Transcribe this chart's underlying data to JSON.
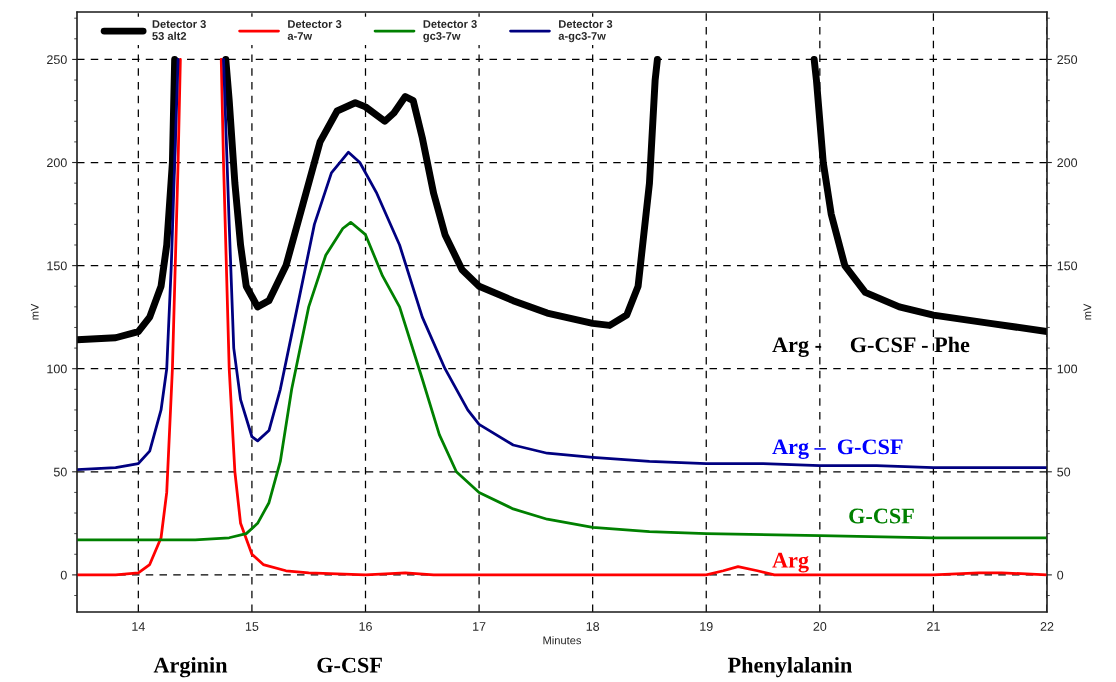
{
  "chart_data": {
    "type": "line",
    "xlabel": "Minutes",
    "ylabel": "mV",
    "y2label": "mV",
    "xlim": [
      13.46,
      22
    ],
    "xticks": [
      14,
      15,
      16,
      17,
      18,
      19,
      20,
      21,
      22
    ],
    "ylim": [
      -18,
      273
    ],
    "yticks": [
      0,
      50,
      100,
      150,
      200,
      250
    ],
    "y2lim": [
      -18,
      273
    ],
    "y2ticks": [
      0,
      50,
      100,
      150,
      200,
      250
    ],
    "grid": true,
    "legend": "top left",
    "line_style": "solid",
    "marker": "none",
    "series": [
      {
        "name": "Detector 3\n53 alt2",
        "color": "#000000",
        "x": [
          13.46,
          13.8,
          14.0,
          14.1,
          14.2,
          14.25,
          14.3,
          14.32,
          14.5,
          14.77,
          14.8,
          14.85,
          14.9,
          14.95,
          15.05,
          15.15,
          15.3,
          15.45,
          15.6,
          15.75,
          15.91,
          16.0,
          16.17,
          16.25,
          16.35,
          16.42,
          16.5,
          16.6,
          16.7,
          16.85,
          17.0,
          17.3,
          17.6,
          18.0,
          18.15,
          18.3,
          18.4,
          18.5,
          18.55,
          18.57,
          19.2,
          19.95,
          19.97,
          20.03,
          20.1,
          20.22,
          20.4,
          20.7,
          21.0,
          21.5,
          22.0
        ],
        "values": [
          114,
          115,
          118,
          125,
          140,
          160,
          200,
          250,
          null,
          250,
          230,
          190,
          160,
          140,
          130,
          133,
          150,
          180,
          210,
          225,
          229,
          227,
          220,
          224,
          232,
          230,
          212,
          185,
          165,
          148,
          140,
          133,
          127,
          122,
          121,
          126,
          140,
          190,
          240,
          250,
          null,
          250,
          240,
          200,
          175,
          150,
          137,
          130,
          126,
          122,
          118
        ]
      },
      {
        "name": "Detector 3\na-7w",
        "color": "#ff0000",
        "x": [
          13.46,
          13.8,
          14.0,
          14.1,
          14.2,
          14.25,
          14.3,
          14.35,
          14.37,
          14.55,
          14.73,
          14.75,
          14.8,
          14.85,
          14.9,
          15.0,
          15.1,
          15.3,
          15.5,
          16.0,
          16.35,
          16.6,
          18.5,
          19.0,
          19.15,
          19.28,
          19.45,
          19.6,
          20.5,
          21.0,
          21.4,
          21.6,
          22.0
        ],
        "values": [
          0,
          0,
          1,
          5,
          18,
          40,
          100,
          200,
          250,
          null,
          250,
          200,
          100,
          50,
          25,
          10,
          5,
          2,
          1,
          0,
          1,
          0,
          0,
          0,
          2,
          4,
          2,
          0,
          0,
          0,
          1,
          1,
          0
        ]
      },
      {
        "name": "Detector 3\ngc3-7w",
        "color": "#008000",
        "x": [
          13.46,
          14.5,
          14.8,
          14.95,
          15.05,
          15.15,
          15.25,
          15.35,
          15.5,
          15.65,
          15.8,
          15.87,
          16.0,
          16.15,
          16.3,
          16.5,
          16.65,
          16.8,
          17.0,
          17.3,
          17.6,
          18.0,
          18.5,
          19.0,
          20.0,
          21.0,
          22.0
        ],
        "values": [
          17,
          17,
          18,
          20,
          25,
          35,
          55,
          90,
          130,
          155,
          168,
          171,
          165,
          145,
          130,
          95,
          68,
          50,
          40,
          32,
          27,
          23,
          21,
          20,
          19,
          18,
          18
        ]
      },
      {
        "name": "Detector 3\na-gc3-7w",
        "color": "#000080",
        "x": [
          13.46,
          13.8,
          14.0,
          14.1,
          14.2,
          14.25,
          14.29,
          14.35,
          14.55,
          14.75,
          14.8,
          14.84,
          14.9,
          15.0,
          15.05,
          15.15,
          15.25,
          15.4,
          15.55,
          15.7,
          15.85,
          15.95,
          16.1,
          16.3,
          16.5,
          16.7,
          16.9,
          17.0,
          17.3,
          17.6,
          18.0,
          18.5,
          19.0,
          19.5,
          20.0,
          20.5,
          21.0,
          22.0
        ],
        "values": [
          51,
          52,
          54,
          60,
          80,
          100,
          150,
          250,
          null,
          250,
          170,
          110,
          85,
          67,
          65,
          70,
          90,
          130,
          170,
          195,
          205,
          200,
          185,
          160,
          125,
          100,
          80,
          73,
          63,
          59,
          57,
          55,
          54,
          54,
          53,
          53,
          52,
          52
        ]
      }
    ],
    "annotations": [
      "Arg -     G-CSF - Phe",
      "Arg –  G-CSF",
      "G-CSF",
      "Arg",
      "Arginin",
      "G-CSF",
      "Phenylalanin"
    ]
  }
}
